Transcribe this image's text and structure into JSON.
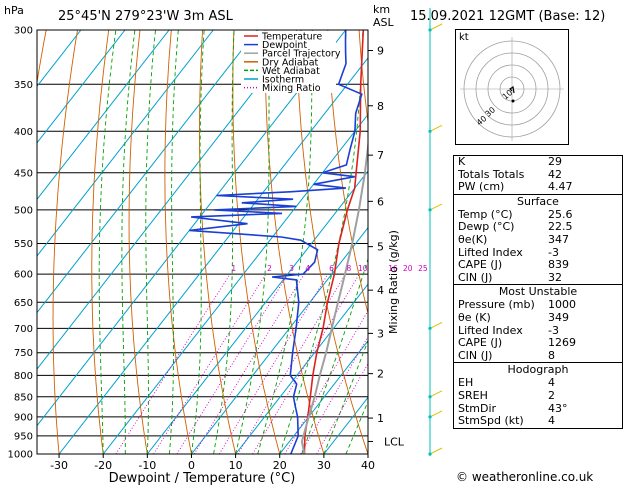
{
  "header": {
    "hpa_label": "hPa",
    "location": "25°45'N  279°23'W  3m  ASL",
    "km_label": "km",
    "asl_label": "ASL",
    "datetime": "15.09.2021  12GMT  (Base: 12)"
  },
  "chart_data": {
    "type": "line",
    "title": "25°45'N  279°23'W  3m  ASL",
    "xlabel": "Dewpoint / Temperature (°C)",
    "ylabel": "hPa",
    "y2label": "Mixing Ratio (g/kg)",
    "xlim": [
      -35,
      40
    ],
    "ylim": [
      1000,
      300
    ],
    "y_scale": "log",
    "x_ticks": [
      -30,
      -20,
      -10,
      0,
      10,
      20,
      30,
      40
    ],
    "pressure_levels": [
      300,
      350,
      400,
      450,
      500,
      550,
      600,
      650,
      700,
      750,
      800,
      850,
      900,
      950,
      1000
    ],
    "km_ticks": [
      {
        "km": "1",
        "p": 903
      },
      {
        "km": "2",
        "p": 796
      },
      {
        "km": "3",
        "p": 710
      },
      {
        "km": "4",
        "p": 628
      },
      {
        "km": "5",
        "p": 555
      },
      {
        "km": "6",
        "p": 488
      },
      {
        "km": "7",
        "p": 428
      },
      {
        "km": "8",
        "p": 372
      },
      {
        "km": "9",
        "p": 318
      }
    ],
    "lcl_label": "LCL",
    "lcl_p": 965,
    "mixing_ratio_labels": [
      "1",
      "2",
      "3",
      "4",
      "6",
      "8",
      "10",
      "16",
      "20",
      "25"
    ],
    "mixing_ratio_values": [
      1,
      2,
      3,
      4,
      6,
      8,
      10,
      16,
      20,
      25
    ],
    "legend": [
      "Temperature",
      "Dewpoint",
      "Parcel Trajectory",
      "Dry Adiabat",
      "Wet Adiabat",
      "Isotherm",
      "Mixing Ratio"
    ],
    "legend_colors": [
      "#e02020",
      "#1a3fd6",
      "#a0a0a0",
      "#d06000",
      "#00a000",
      "#00a0d0",
      "#d000c0"
    ],
    "series": [
      {
        "name": "Temperature",
        "color": "#e02020",
        "p": [
          1000,
          950,
          900,
          850,
          800,
          750,
          700,
          650,
          600,
          550,
          500,
          470,
          450,
          400,
          350,
          300
        ],
        "t": [
          25.6,
          22.5,
          19.8,
          16.8,
          13.6,
          10.5,
          7.6,
          4.0,
          0.6,
          -3.8,
          -7.8,
          -10.0,
          -12.4,
          -18.8,
          -27.0,
          -36.0
        ]
      },
      {
        "name": "Dewpoint",
        "color": "#1a3fd6",
        "p": [
          1000,
          950,
          900,
          870,
          850,
          820,
          800,
          750,
          700,
          650,
          610,
          605,
          600,
          580,
          560,
          545,
          540,
          530,
          520,
          510,
          505,
          500,
          495,
          490,
          485,
          480,
          475,
          470,
          465,
          455,
          450,
          440,
          430,
          420,
          400,
          380,
          360,
          350,
          340,
          330,
          320,
          310,
          300
        ],
        "t": [
          22.5,
          21.0,
          17.5,
          14.8,
          13.0,
          11.5,
          8.5,
          5.0,
          1.5,
          -2.5,
          -7.0,
          -13.0,
          -6.5,
          -6.0,
          -7.5,
          -13.0,
          -18.0,
          -40.0,
          -28.0,
          -42.0,
          -22.0,
          -38.0,
          -20.0,
          -33.0,
          -22.0,
          -40.0,
          -24.0,
          -12.0,
          -20.0,
          -12.0,
          -20.0,
          -16.0,
          -17.0,
          -18.0,
          -20.0,
          -23.0,
          -25.0,
          -32.0,
          -33.0,
          -34.0,
          -36.0,
          -38.0,
          -40.0
        ]
      },
      {
        "name": "Parcel Trajectory",
        "color": "#a0a0a0",
        "p": [
          1000,
          965,
          900,
          850,
          800,
          750,
          700,
          650,
          600,
          550,
          500,
          450,
          400,
          380
        ],
        "t": [
          25.6,
          22.8,
          20.0,
          17.8,
          15.2,
          12.6,
          9.6,
          6.4,
          3.0,
          -0.8,
          -5.2,
          -10.4,
          -16.6,
          -19.5
        ]
      }
    ]
  },
  "hodograph": {
    "label": "kt",
    "rings": [
      "10",
      "20",
      "30",
      "40"
    ],
    "ring_labels": [
      "10",
      "30",
      "40"
    ]
  },
  "indices": {
    "block1": [
      {
        "label": "K",
        "value": "29"
      },
      {
        "label": "Totals Totals",
        "value": "42"
      },
      {
        "label": "PW (cm)",
        "value": "4.47"
      }
    ],
    "surface": {
      "title": "Surface",
      "rows": [
        {
          "label": "Temp (°C)",
          "value": "25.6"
        },
        {
          "label": "Dewp (°C)",
          "value": "22.5"
        },
        {
          "label": "θe(K)",
          "value": "347"
        },
        {
          "label": "Lifted Index",
          "value": "-3"
        },
        {
          "label": "CAPE (J)",
          "value": "839"
        },
        {
          "label": "CIN (J)",
          "value": "32"
        }
      ]
    },
    "most_unstable": {
      "title": "Most Unstable",
      "rows": [
        {
          "label": "Pressure (mb)",
          "value": "1000"
        },
        {
          "label": "θe (K)",
          "value": "349"
        },
        {
          "label": "Lifted Index",
          "value": "-3"
        },
        {
          "label": "CAPE (J)",
          "value": "1269"
        },
        {
          "label": "CIN (J)",
          "value": "8"
        }
      ]
    },
    "hodograph_box": {
      "title": "Hodograph",
      "rows": [
        {
          "label": "EH",
          "value": "4"
        },
        {
          "label": "SREH",
          "value": "2"
        },
        {
          "label": "StmDir",
          "value": "43°"
        },
        {
          "label": "StmSpd (kt)",
          "value": "4"
        }
      ]
    }
  },
  "credit": "© weatheronline.co.uk"
}
